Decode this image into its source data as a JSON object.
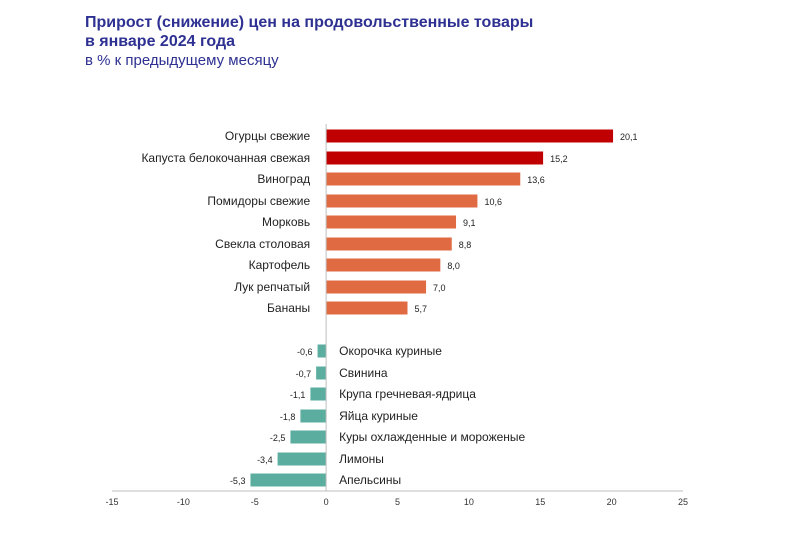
{
  "title": {
    "line1": "Прирост (снижение) цен на продовольственные товары",
    "line2": "в январе 2024 года",
    "subtitle": "в % к предыдущему месяцу"
  },
  "chart_data": {
    "type": "bar",
    "orientation": "horizontal",
    "categories": [
      "Огурцы свежие",
      "Капуста белокочанная свежая",
      "Виноград",
      "Помидоры свежие",
      "Морковь",
      "Свекла столовая",
      "Картофель",
      "Лук репчатый",
      "Бананы",
      "Окорочка куриные",
      "Свинина",
      "Крупа гречневая-ядрица",
      "Яйца куриные",
      "Куры  охлажденные и мороженые",
      "Лимоны",
      "Апельсины"
    ],
    "values": [
      20.1,
      15.2,
      13.6,
      10.6,
      9.1,
      8.8,
      8.0,
      7.0,
      5.7,
      -0.6,
      -0.7,
      -1.1,
      -1.8,
      -2.5,
      -3.4,
      -5.3
    ],
    "value_labels": [
      "20,1",
      "15,2",
      "13,6",
      "10,6",
      "9,1",
      "8,8",
      "8,0",
      "7,0",
      "5,7",
      "-0,6",
      "-0,7",
      "-1,1",
      "-1,8",
      "-2,5",
      "-3,4",
      "-5,3"
    ],
    "xlim": [
      -15,
      25
    ],
    "xticks": [
      -15,
      -10,
      -5,
      0,
      5,
      10,
      15,
      20,
      25
    ],
    "xtick_labels": [
      "-15",
      "-10",
      "-5",
      "0",
      "5",
      "10",
      "15",
      "20",
      "25"
    ],
    "grid": false,
    "legend": "none",
    "colors": {
      "top": "#c00000",
      "positive": "#e06a41",
      "negative": "#5aad9f",
      "axis": "#bfbfbf"
    },
    "top_highlight_count": 2
  }
}
